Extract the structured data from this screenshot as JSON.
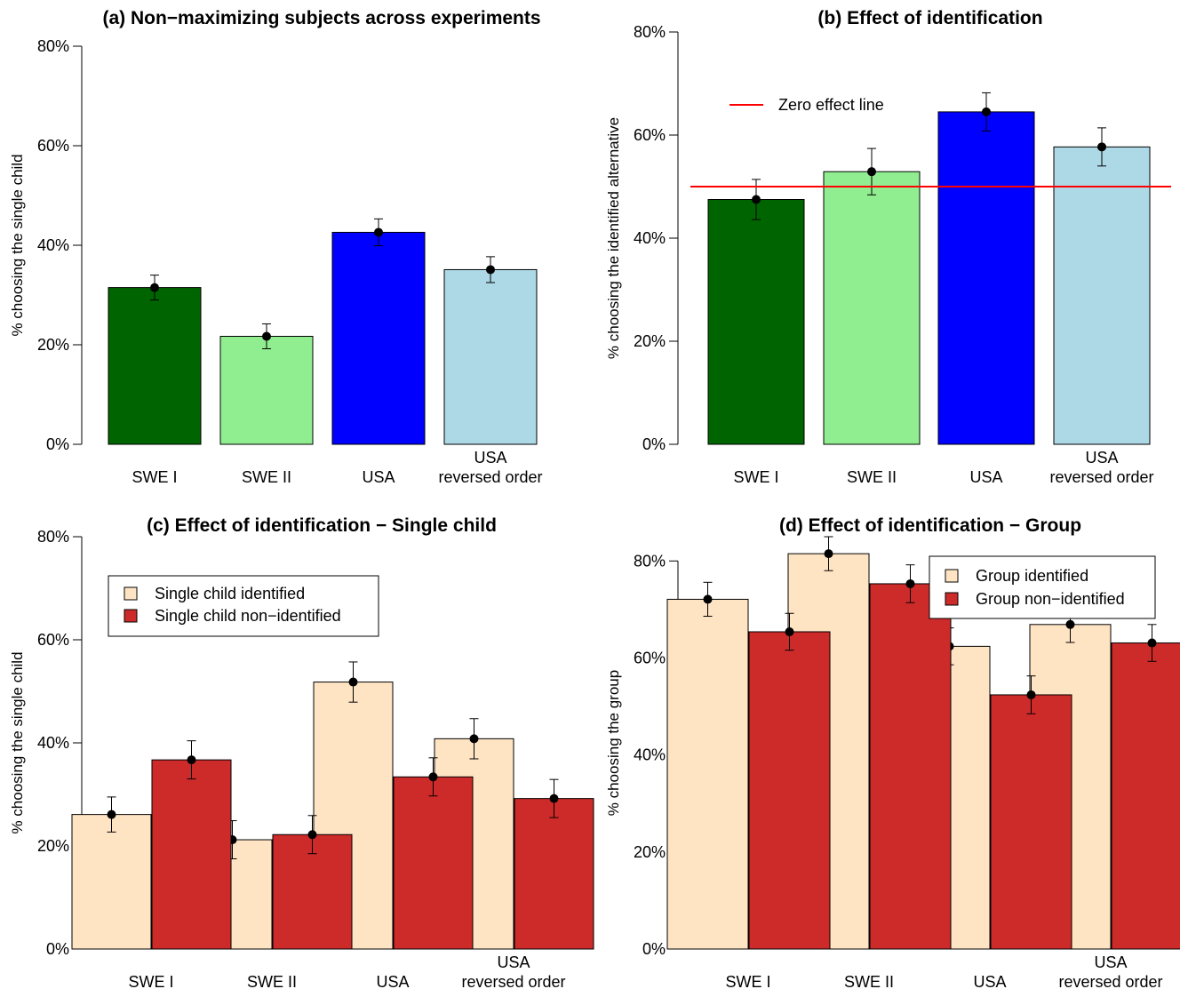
{
  "chart_data": [
    {
      "type": "bar",
      "title": "(a) Non−maximizing subjects across experiments",
      "xlabel": "",
      "ylabel": "% choosing the single child",
      "ylim": [
        0,
        80
      ],
      "yticks": [
        "0%",
        "20%",
        "40%",
        "60%",
        "80%"
      ],
      "categories": [
        [
          "SWE I"
        ],
        [
          "SWE II"
        ],
        [
          "USA"
        ],
        [
          "USA",
          "reversed order"
        ]
      ],
      "values": [
        31.5,
        21.7,
        42.6,
        35.1
      ],
      "error_low": [
        29.0,
        19.2,
        39.9,
        32.5
      ],
      "error_high": [
        34.0,
        24.2,
        45.3,
        37.7
      ],
      "colors": [
        "#006400",
        "#90EE90",
        "#0000FF",
        "#ADD8E6"
      ],
      "grid": false
    },
    {
      "type": "bar",
      "title": "(b) Effect of identification",
      "xlabel": "",
      "ylabel": "% choosing the identified alternative",
      "ylim": [
        0,
        80
      ],
      "yticks": [
        "0%",
        "20%",
        "40%",
        "60%",
        "80%"
      ],
      "categories": [
        [
          "SWE I"
        ],
        [
          "SWE II"
        ],
        [
          "USA"
        ],
        [
          "USA",
          "reversed order"
        ]
      ],
      "values": [
        47.5,
        52.9,
        64.5,
        57.7
      ],
      "error_low": [
        43.6,
        48.4,
        60.8,
        54.0
      ],
      "error_high": [
        51.4,
        57.4,
        68.2,
        61.4
      ],
      "colors": [
        "#006400",
        "#90EE90",
        "#0000FF",
        "#ADD8E6"
      ],
      "reference_line": {
        "value": 50,
        "color": "#FF0000",
        "label": "Zero effect line"
      },
      "legend_position": "top-left",
      "grid": false
    },
    {
      "type": "bar",
      "title": "(c) Effect of identification − Single child",
      "xlabel": "",
      "ylabel": "% choosing the single child",
      "ylim": [
        0,
        80
      ],
      "yticks": [
        "0%",
        "20%",
        "40%",
        "60%",
        "80%"
      ],
      "categories": [
        [
          "SWE I"
        ],
        [
          "SWE II"
        ],
        [
          "USA"
        ],
        [
          "USA",
          "reversed order"
        ]
      ],
      "series": [
        {
          "name": "Single child identified",
          "color": "#FFE4C4",
          "values": [
            26.1,
            21.2,
            51.8,
            40.8
          ],
          "error_low": [
            22.7,
            17.5,
            47.9,
            36.9
          ],
          "error_high": [
            29.5,
            24.9,
            55.7,
            44.7
          ]
        },
        {
          "name": "Single child non−identified",
          "color": "#CD2A2A",
          "values": [
            36.7,
            22.2,
            33.4,
            29.2
          ],
          "error_low": [
            33.0,
            18.5,
            29.7,
            25.5
          ],
          "error_high": [
            40.4,
            25.9,
            37.1,
            32.9
          ]
        }
      ],
      "legend_position": "top-left",
      "grid": false
    },
    {
      "type": "bar",
      "title": "(d) Effect of identification − Group",
      "xlabel": "",
      "ylabel": "% choosing the group",
      "ylim": [
        0,
        85
      ],
      "yticks": [
        "0%",
        "20%",
        "40%",
        "60%",
        "80%"
      ],
      "categories": [
        [
          "SWE I"
        ],
        [
          "SWE II"
        ],
        [
          "USA"
        ],
        [
          "USA",
          "reversed order"
        ]
      ],
      "series": [
        {
          "name": "Group identified",
          "color": "#FFE4C4",
          "values": [
            72.1,
            81.5,
            62.4,
            66.9
          ],
          "error_low": [
            68.6,
            78.0,
            58.6,
            63.2
          ],
          "error_high": [
            75.6,
            85.0,
            66.2,
            70.6
          ]
        },
        {
          "name": "Group non−identified",
          "color": "#CD2A2A",
          "values": [
            65.4,
            75.3,
            52.4,
            63.1
          ],
          "error_low": [
            61.6,
            71.4,
            48.5,
            59.3
          ],
          "error_high": [
            69.2,
            79.2,
            56.3,
            66.9
          ]
        }
      ],
      "legend_position": "top-right",
      "grid": false
    }
  ]
}
